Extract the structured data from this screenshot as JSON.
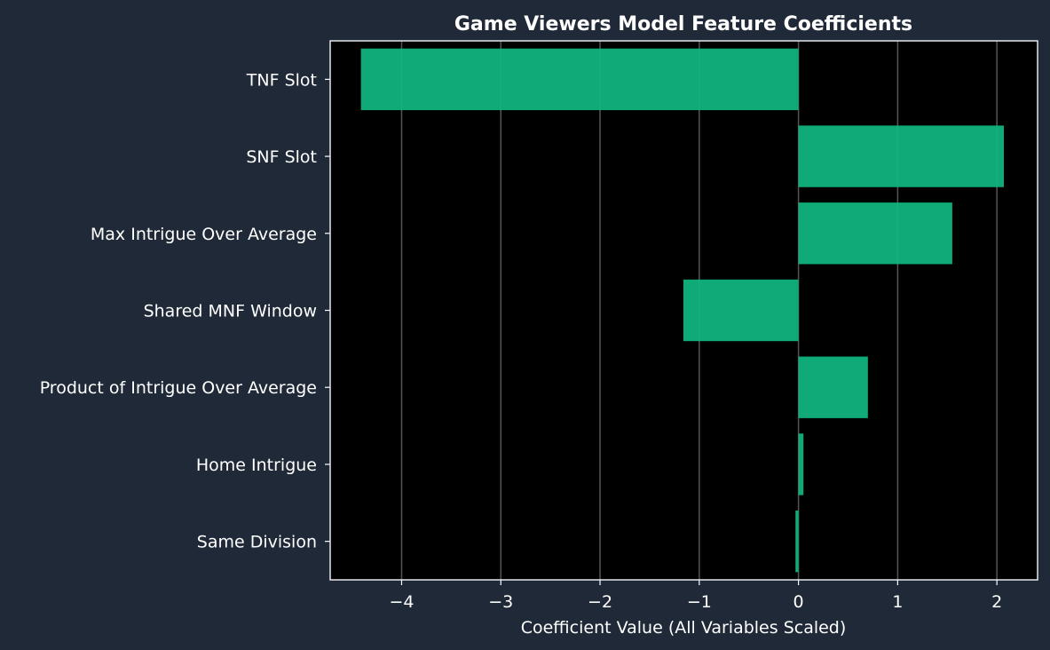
{
  "chart_data": {
    "type": "bar",
    "orientation": "horizontal",
    "title": "Game Viewers Model Feature Coefficients",
    "xlabel": "Coefficient Value (All Variables Scaled)",
    "ylabel": "",
    "categories": [
      "TNF Slot",
      "SNF Slot",
      "Max Intrigue Over Average",
      "Shared MNF Window",
      "Product of Intrigue Over Average",
      "Home Intrigue",
      "Same Division"
    ],
    "values": [
      -4.41,
      2.07,
      1.55,
      -1.16,
      0.7,
      0.05,
      -0.03
    ],
    "xlim": [
      -4.72,
      2.41
    ],
    "xticks": [
      -4,
      -3,
      -2,
      -1,
      0,
      1,
      2
    ],
    "xtick_labels": [
      "−4",
      "−3",
      "−2",
      "−1",
      "0",
      "1",
      "2"
    ],
    "grid": "x",
    "colors": {
      "page_background": "#1f2937",
      "plot_background": "#000000",
      "bar": "#10b981",
      "grid": "#555555",
      "text": "#ffffff",
      "frame": "#e5e7eb"
    }
  }
}
